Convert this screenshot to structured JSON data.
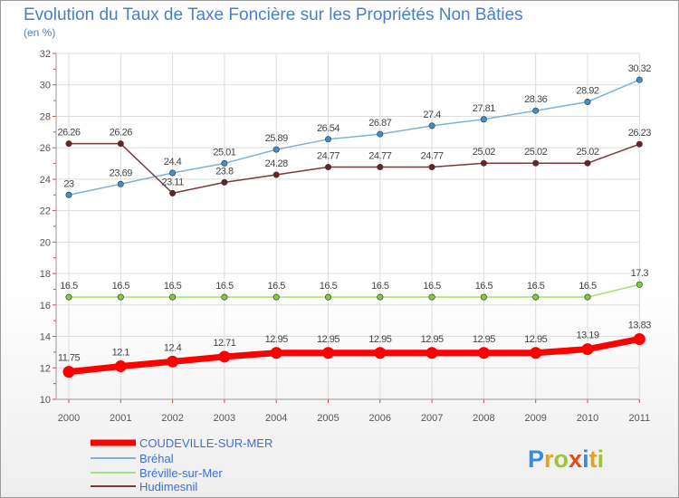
{
  "chart_data": {
    "type": "line",
    "title": "Evolution du Taux de Taxe Foncière sur les Propriétés Non Bâties",
    "subtitle": "(en %)",
    "x": [
      "2000",
      "2001",
      "2002",
      "2003",
      "2004",
      "2005",
      "2006",
      "2007",
      "2008",
      "2009",
      "2010",
      "2011"
    ],
    "ylim": [
      10,
      32
    ],
    "yticks": [
      "10",
      "12",
      "14",
      "16",
      "18",
      "20",
      "22",
      "24",
      "26",
      "28",
      "30",
      "32"
    ],
    "grid": true,
    "legend_position": "bottom-left",
    "series": [
      {
        "name": "COUDEVILLE-SUR-MER",
        "color": "#ff0000",
        "values": [
          11.75,
          12.1,
          12.4,
          12.71,
          12.95,
          12.95,
          12.95,
          12.95,
          12.95,
          12.95,
          13.19,
          13.83
        ],
        "labels": [
          "11.75",
          "12.1",
          "12.4",
          "12.71",
          "12.95",
          "12.95",
          "12.95",
          "12.95",
          "12.95",
          "12.95",
          "13.19",
          "13.83"
        ]
      },
      {
        "name": "Bréhal",
        "color": "#7fb2d6",
        "point_color": "#3d8fd0",
        "values": [
          23,
          23.69,
          24.4,
          25.01,
          25.89,
          26.54,
          26.87,
          27.4,
          27.81,
          28.36,
          28.92,
          30.32
        ],
        "labels": [
          "23",
          "23.69",
          "24.4",
          "25.01",
          "25.89",
          "26.54",
          "26.87",
          "27.4",
          "27.81",
          "28.36",
          "28.92",
          "30.32"
        ]
      },
      {
        "name": "Bréville-sur-Mer",
        "color": "#a7e07a",
        "point_color": "#7ccc3c",
        "values": [
          16.5,
          16.5,
          16.5,
          16.5,
          16.5,
          16.5,
          16.5,
          16.5,
          16.5,
          16.5,
          16.5,
          17.3
        ],
        "labels": [
          "16.5",
          "16.5",
          "16.5",
          "16.5",
          "16.5",
          "16.5",
          "16.5",
          "16.5",
          "16.5",
          "16.5",
          "16.5",
          "17.3"
        ]
      },
      {
        "name": "Hudimesnil",
        "color": "#7a3a3a",
        "point_color": "#6b2222",
        "values": [
          26.26,
          26.26,
          23.11,
          23.8,
          24.28,
          24.77,
          24.77,
          24.77,
          25.02,
          25.02,
          25.02,
          26.23
        ],
        "labels": [
          "26.26",
          "26.26",
          "23.11",
          "23.8",
          "24.28",
          "24.77",
          "24.77",
          "24.77",
          "25.02",
          "25.02",
          "25.02",
          "26.23"
        ]
      }
    ]
  },
  "logo": {
    "text": "Proxiti"
  }
}
